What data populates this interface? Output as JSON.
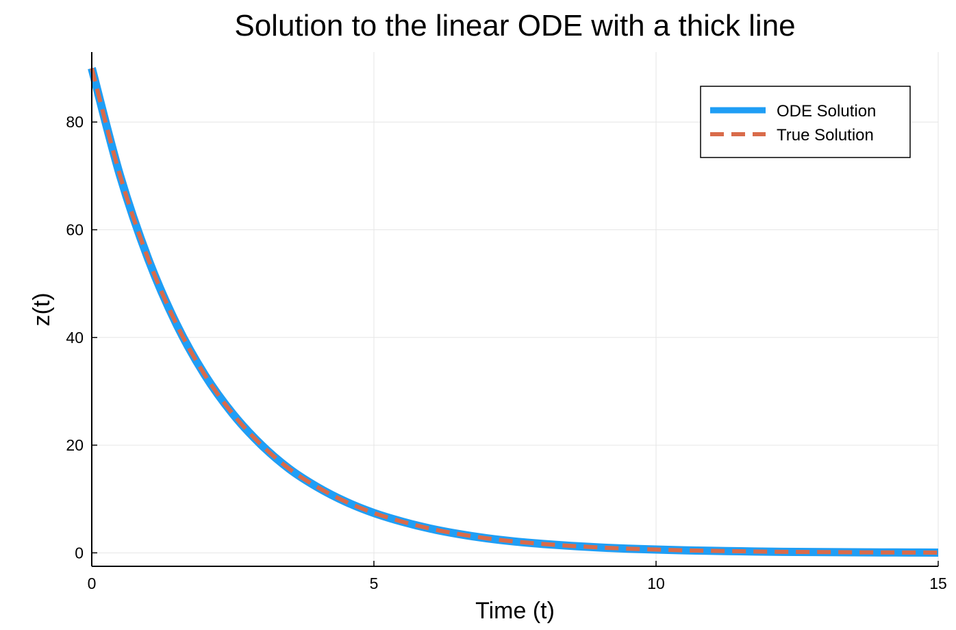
{
  "chart_data": {
    "type": "line",
    "title": "Solution to the linear ODE with a thick line",
    "xlabel": "Time (t)",
    "ylabel": "z(t)",
    "xlim": [
      0,
      15
    ],
    "ylim": [
      -2.5,
      93
    ],
    "xticks": [
      0,
      5,
      10,
      15
    ],
    "xtick_labels": [
      "0",
      "5",
      "10",
      "15"
    ],
    "yticks": [
      0,
      20,
      40,
      60,
      80
    ],
    "ytick_labels": [
      "0",
      "20",
      "40",
      "60",
      "80"
    ],
    "grid": true,
    "legend_position": "top-right",
    "x": [
      0,
      0.5,
      1,
      1.5,
      2,
      2.5,
      3,
      3.5,
      4,
      4.5,
      5,
      5.5,
      6,
      6.5,
      7,
      7.5,
      8,
      8.5,
      9,
      9.5,
      10,
      10.5,
      11,
      11.5,
      12,
      12.5,
      13,
      13.5,
      14,
      14.5,
      15
    ],
    "series": [
      {
        "name": "ODE Solution",
        "color": "#1f9ef5",
        "style": "solid-thick",
        "values": [
          90,
          70.1,
          54.6,
          42.5,
          33.1,
          25.8,
          20.1,
          15.6,
          12.2,
          9.5,
          7.4,
          5.8,
          4.5,
          3.5,
          2.7,
          2.1,
          1.65,
          1.29,
          1.0,
          0.78,
          0.61,
          0.47,
          0.37,
          0.29,
          0.22,
          0.17,
          0.14,
          0.1,
          0.08,
          0.06,
          0.05
        ]
      },
      {
        "name": "True Solution",
        "color": "#d96b4a",
        "style": "dashed",
        "values": [
          90,
          70.1,
          54.6,
          42.5,
          33.1,
          25.8,
          20.1,
          15.6,
          12.2,
          9.5,
          7.4,
          5.8,
          4.5,
          3.5,
          2.7,
          2.1,
          1.65,
          1.29,
          1.0,
          0.78,
          0.61,
          0.47,
          0.37,
          0.29,
          0.22,
          0.17,
          0.14,
          0.1,
          0.08,
          0.06,
          0.05
        ]
      }
    ]
  }
}
